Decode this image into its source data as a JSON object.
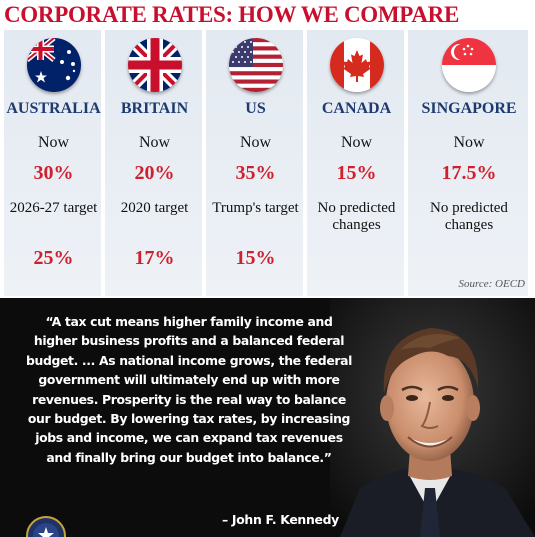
{
  "headline": "CORPORATE RATES: HOW WE COMPARE",
  "countries": [
    {
      "name": "AUSTRALIA",
      "flag": "australia-flag-icon",
      "now_label": "Now",
      "now_rate": "30%",
      "target_label": "2026-27 target",
      "target_rate": "25%"
    },
    {
      "name": "BRITAIN",
      "flag": "uk-flag-icon",
      "now_label": "Now",
      "now_rate": "20%",
      "target_label": "2020 target",
      "target_rate": "17%"
    },
    {
      "name": "US",
      "flag": "us-flag-icon",
      "now_label": "Now",
      "now_rate": "35%",
      "target_label": "Trump's target",
      "target_rate": "15%"
    },
    {
      "name": "CANADA",
      "flag": "canada-flag-icon",
      "now_label": "Now",
      "now_rate": "15%",
      "target_label": "No predicted changes",
      "target_rate": ""
    },
    {
      "name": "SINGAPORE",
      "flag": "singapore-flag-icon",
      "now_label": "Now",
      "now_rate": "17.5%",
      "target_label": "No predicted changes",
      "target_rate": ""
    }
  ],
  "source": "Source: OECD",
  "quote": {
    "text": "“A tax cut means higher family income and higher business profits and a balanced federal budget. ... As national income grows, the federal government will ultimately end up with more revenues. Prosperity is the real way to balance our budget. By lowering tax rates, by increasing jobs and income, we can expand tax revenues and finally bring our budget into balance.”",
    "attribution": "– John F. Kennedy"
  },
  "colors": {
    "headline": "#c8102e",
    "country_name": "#1e3a6e",
    "rate": "#d0202e",
    "column_bg": "#e6ecf3",
    "quote_bg": "#0c0c0c"
  }
}
